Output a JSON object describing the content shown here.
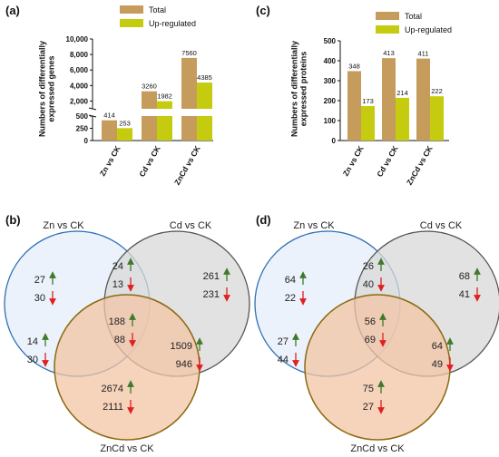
{
  "colors": {
    "total": "#c69c5c",
    "up": "#c5cc10",
    "up_arrow": "#3f7a2a",
    "down_arrow": "#e02020",
    "zn_fill": "#e7f0fa",
    "zn_stroke": "#2e6fb5",
    "cd_fill": "#d8d8d8",
    "cd_stroke": "#555555",
    "zncd_fill": "#f3c4a4",
    "zncd_stroke": "#8a6a10"
  },
  "panels": {
    "a": "(a)",
    "b": "(b)",
    "c": "(c)",
    "d": "(d)"
  },
  "legend": {
    "total": "Total",
    "up": "Up-regulated"
  },
  "chart_data": [
    {
      "panel": "(a)",
      "type": "bar",
      "categories": [
        "Zn vs CK",
        "Cd vs CK",
        "ZnCd vs CK"
      ],
      "series": [
        {
          "name": "Total",
          "values": [
            414,
            3260,
            7560
          ]
        },
        {
          "name": "Up-regulated",
          "values": [
            253,
            1982,
            4385
          ]
        }
      ],
      "data_labels": [
        [
          "414",
          "3260",
          "7560"
        ],
        [
          "253",
          "1982",
          "4385"
        ]
      ],
      "ylabel": "Numbers of differentially expressed genes",
      "yticks_lower": [
        "0",
        "250",
        "500"
      ],
      "yticks_upper": [
        "2,000",
        "4,000",
        "6,000",
        "8,000",
        "10,000"
      ],
      "axis_break": [
        500,
        1000
      ],
      "ylim": [
        0,
        10000
      ]
    },
    {
      "panel": "(c)",
      "type": "bar",
      "categories": [
        "Zn vs CK",
        "Cd vs CK",
        "ZnCd vs CK"
      ],
      "series": [
        {
          "name": "Total",
          "values": [
            348,
            413,
            411
          ]
        },
        {
          "name": "Up-regulated",
          "values": [
            173,
            214,
            222
          ]
        }
      ],
      "data_labels": [
        [
          "348",
          "413",
          "411"
        ],
        [
          "173",
          "214",
          "222"
        ]
      ],
      "ylabel": "Numbers of differentially expressed proteins",
      "yticks": [
        "0",
        "100",
        "200",
        "300",
        "400",
        "500"
      ],
      "ylim": [
        0,
        500
      ]
    }
  ],
  "venn": [
    {
      "panel": "(b)",
      "sets": [
        "Zn vs CK",
        "Cd vs CK",
        "ZnCd vs CK"
      ],
      "regions": {
        "zn_only": {
          "up": "27",
          "down": "30"
        },
        "zn_cd": {
          "up": "24",
          "down": "13"
        },
        "cd_only": {
          "up": "261",
          "down": "231"
        },
        "all": {
          "up": "188",
          "down": "88"
        },
        "zn_zncd": {
          "up": "14",
          "down": "30"
        },
        "cd_zncd": {
          "up": "1509",
          "down": "946"
        },
        "zncd_only": {
          "up": "2674",
          "down": "2111"
        }
      }
    },
    {
      "panel": "(d)",
      "sets": [
        "Zn vs CK",
        "Cd vs CK",
        "ZnCd vs CK"
      ],
      "regions": {
        "zn_only": {
          "up": "64",
          "down": "22"
        },
        "zn_cd": {
          "up": "26",
          "down": "40"
        },
        "cd_only": {
          "up": "68",
          "down": "41"
        },
        "all": {
          "up": "56",
          "down": "69"
        },
        "zn_zncd": {
          "up": "27",
          "down": "44"
        },
        "cd_zncd": {
          "up": "64",
          "down": "49"
        },
        "zncd_only": {
          "up": "75",
          "down": "27"
        }
      }
    }
  ]
}
